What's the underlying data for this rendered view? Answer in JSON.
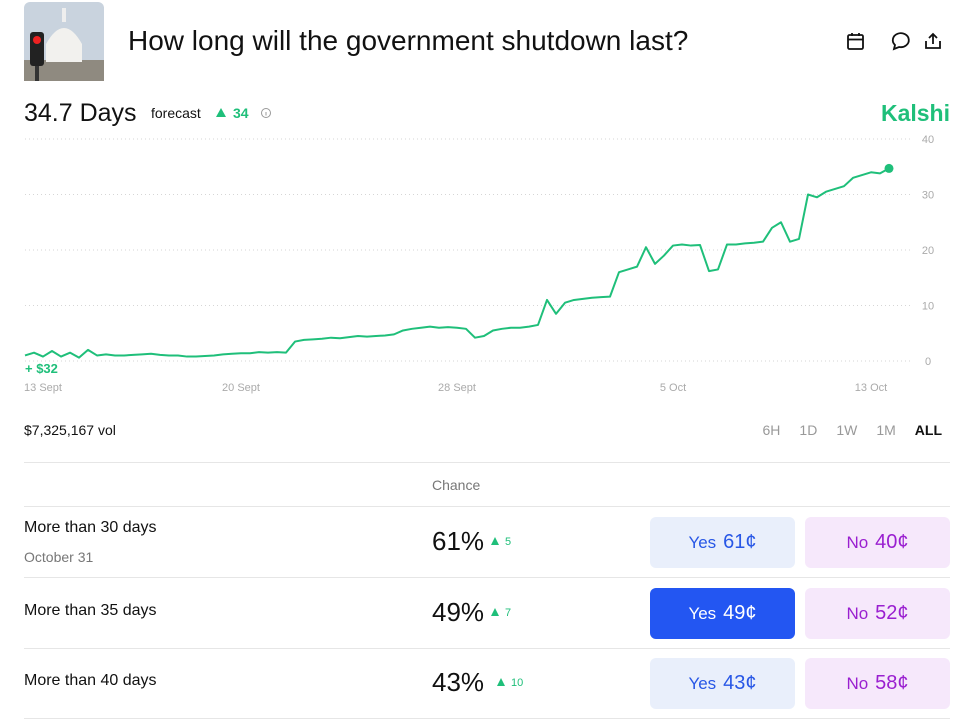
{
  "header": {
    "title": "How long will the government shutdown last?"
  },
  "forecast": {
    "value": "34.7 Days",
    "label": "forecast",
    "change": "34",
    "brand": "Kalshi"
  },
  "chart_data": {
    "type": "line",
    "color": "#1fbf7a",
    "annotation": "+ $32",
    "categories": [
      null,
      null,
      "13 Sept",
      null,
      null,
      null,
      null,
      null,
      null,
      null,
      null,
      null,
      null,
      null,
      null,
      null,
      null,
      null,
      null,
      null,
      null,
      null,
      null,
      null,
      "20 Sept",
      null,
      null,
      null,
      null,
      null,
      null,
      null,
      null,
      null,
      null,
      null,
      null,
      null,
      null,
      null,
      null,
      null,
      null,
      null,
      null,
      null,
      null,
      null,
      "28 Sept",
      null,
      null,
      null,
      null,
      null,
      null,
      null,
      null,
      null,
      null,
      null,
      null,
      null,
      null,
      null,
      null,
      null,
      null,
      null,
      null,
      null,
      null,
      null,
      "5 Oct",
      null,
      null,
      null,
      null,
      null,
      null,
      null,
      null,
      null,
      null,
      null,
      null,
      null,
      null,
      null,
      null,
      null,
      null,
      null,
      null,
      null,
      "13 Oct",
      null,
      null
    ],
    "values": [
      1,
      1.5,
      0.8,
      1.8,
      0.8,
      1.5,
      0.6,
      2,
      1,
      1.2,
      1,
      1,
      1.1,
      1.2,
      1.3,
      1.1,
      1,
      1,
      0.8,
      0.8,
      0.9,
      1,
      1.2,
      1.3,
      1.4,
      1.4,
      1.6,
      1.5,
      1.6,
      1.5,
      3.5,
      3.8,
      3.9,
      4,
      4.2,
      4.1,
      4.3,
      4.5,
      4.4,
      4.5,
      4.6,
      4.8,
      5.5,
      5.8,
      6,
      6.2,
      6,
      6.1,
      6,
      5.8,
      4.2,
      4.5,
      5.5,
      5.8,
      6,
      6,
      6.2,
      6.5,
      11,
      8.5,
      10.5,
      11,
      11.2,
      11.4,
      11.5,
      11.6,
      16,
      16.5,
      17,
      20.5,
      17.5,
      19,
      20.8,
      21,
      20.8,
      20.9,
      16.2,
      16.5,
      21,
      21,
      21.2,
      21.3,
      21.5,
      24,
      25,
      21.5,
      22,
      30,
      29.5,
      30.5,
      31,
      31.5,
      33,
      33.5,
      34,
      33.8,
      34.7
    ],
    "ylim": [
      0,
      40
    ],
    "yticks": [
      0,
      10,
      20,
      30,
      40
    ],
    "grid": true
  },
  "volume": "$7,325,167 vol",
  "time_ranges": [
    "6H",
    "1D",
    "1W",
    "1M",
    "ALL"
  ],
  "table": {
    "header": "Chance",
    "rows": [
      {
        "label": "More than 30 days",
        "sublabel": "October 31",
        "chance": "61%",
        "change": "5",
        "yes": "Yes",
        "yes_price": "61¢",
        "no": "No",
        "no_price": "40¢"
      },
      {
        "label": "More than 35 days",
        "chance": "49%",
        "change": "7",
        "yes": "Yes",
        "yes_price": "49¢",
        "no": "No",
        "no_price": "52¢"
      },
      {
        "label": "More than 40 days",
        "chance": "43%",
        "change": "10",
        "yes": "Yes",
        "yes_price": "43¢",
        "no": "No",
        "no_price": "58¢"
      }
    ]
  }
}
